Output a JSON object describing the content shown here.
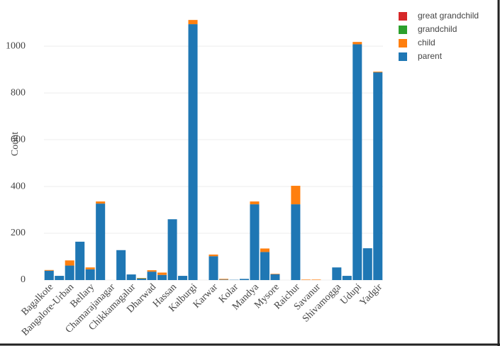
{
  "chart_data": {
    "type": "bar",
    "stacked": true,
    "y_label": "Count",
    "categories": [
      "Bagalkote",
      null,
      "Bangalore-Urban",
      null,
      "Bellary",
      null,
      "Chamarajanagar",
      null,
      "Chikkamagalur",
      null,
      "Dharwad",
      null,
      "Hassan",
      null,
      "Kalburgi",
      null,
      "Karwar",
      null,
      "Kolar",
      null,
      "Mandya",
      null,
      "Mysore",
      null,
      "Raichur",
      null,
      "Savanur",
      null,
      "Shivamogga",
      null,
      "Udupi",
      null,
      "Yadgir"
    ],
    "series": [
      {
        "name": "great grandchild",
        "color": "#d62728",
        "values": [
          0,
          0,
          0,
          0,
          0,
          0,
          0,
          0,
          0,
          0,
          0,
          0,
          0,
          0,
          0,
          0,
          0,
          0,
          0,
          0,
          0,
          0,
          0,
          0,
          0,
          0,
          0,
          0,
          0,
          0,
          0,
          0,
          0
        ]
      },
      {
        "name": "grandchild",
        "color": "#2ca02c",
        "values": [
          0,
          0,
          0,
          0,
          0,
          0,
          0,
          0,
          0,
          1,
          0,
          0,
          0,
          0,
          0,
          0,
          0,
          0,
          0,
          0,
          0,
          0,
          0,
          0,
          0,
          0,
          0,
          0,
          0,
          0,
          0,
          0,
          0
        ]
      },
      {
        "name": "child",
        "color": "#ff7f0e",
        "values": [
          3,
          0,
          22,
          0,
          8,
          9,
          0,
          0,
          0,
          2,
          6,
          10,
          0,
          0,
          18,
          0,
          7,
          3,
          0,
          0,
          12,
          15,
          2,
          0,
          79,
          2,
          2,
          0,
          0,
          0,
          10,
          0,
          3
        ]
      },
      {
        "name": "parent",
        "color": "#1f77b4",
        "values": [
          40,
          18,
          62,
          164,
          46,
          327,
          0,
          128,
          24,
          6,
          36,
          22,
          260,
          18,
          1094,
          0,
          102,
          2,
          1,
          5,
          324,
          120,
          25,
          0,
          324,
          0,
          0,
          0,
          54,
          18,
          1008,
          136,
          888
        ]
      }
    ],
    "ylim": [
      0,
      1167
    ],
    "yticks": [
      0,
      200,
      400,
      600,
      800,
      1000
    ],
    "grid": true,
    "legend": "top-right"
  }
}
